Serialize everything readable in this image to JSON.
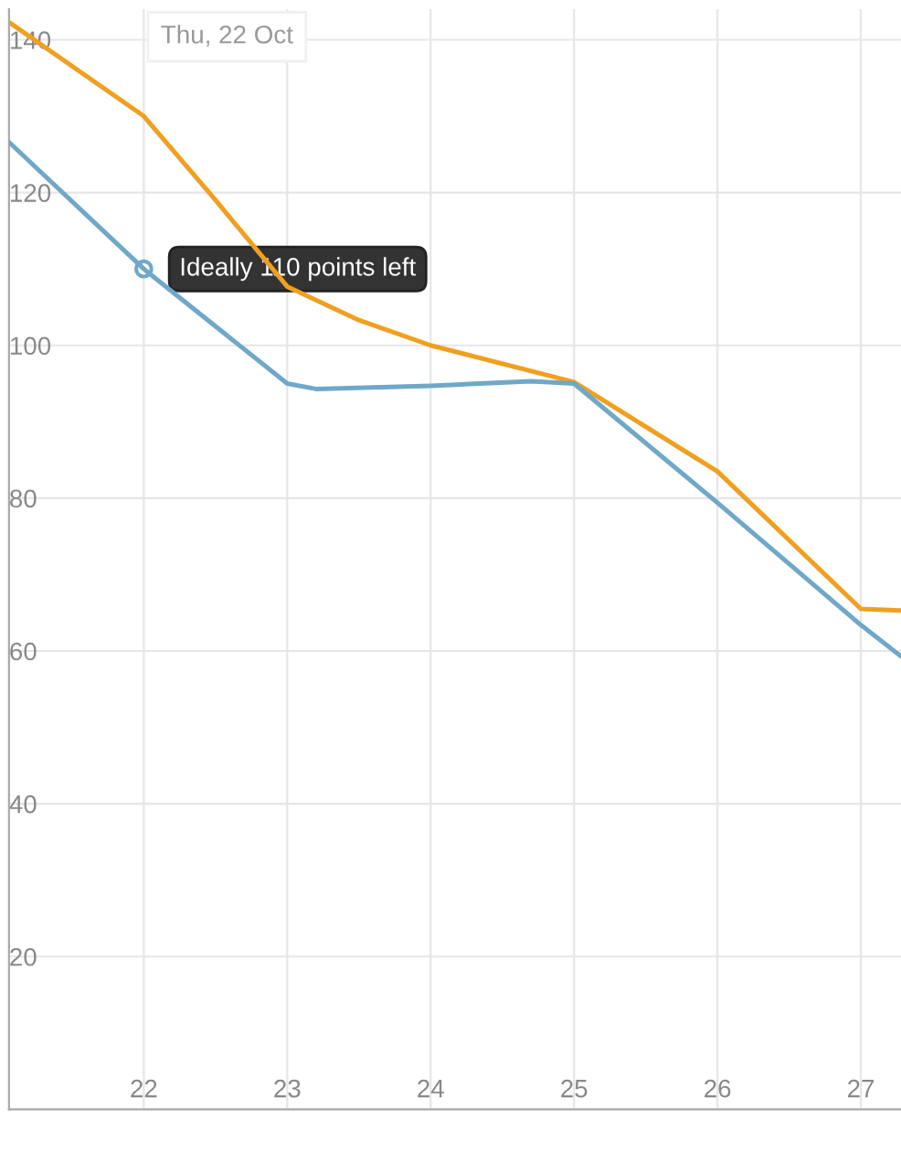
{
  "chart_data": {
    "type": "line",
    "series": [
      {
        "color": "#f0a020",
        "x": [
          21.06,
          22,
          22.5,
          23,
          23.5,
          24,
          25,
          26,
          27,
          27.28
        ],
        "values": [
          142.3,
          130,
          119,
          107.7,
          103.3,
          100,
          95.2,
          83.5,
          65.5,
          65.3
        ]
      },
      {
        "color": "#6fa8c8",
        "x": [
          21.06,
          22,
          23,
          23.2,
          24,
          24.7,
          25,
          26,
          27,
          27.28
        ],
        "values": [
          126.6,
          110,
          95,
          94.3,
          94.7,
          95.3,
          95,
          79.4,
          63.4,
          59.3
        ]
      }
    ],
    "xlim": [
      21.06,
      27.28
    ],
    "xticks": [
      22,
      23,
      24,
      25,
      26,
      27
    ],
    "ylim": [
      0,
      144
    ],
    "yticks": [
      {
        "value": 0,
        "label": null
      },
      20,
      40,
      60,
      80,
      100,
      120,
      140
    ],
    "grid": true,
    "marker": "none",
    "line_style": "solid",
    "annotations": [
      "Thu, 22 Oct",
      {
        "text": "Ideally 110 points left",
        "x": 22,
        "y": 110
      }
    ]
  }
}
